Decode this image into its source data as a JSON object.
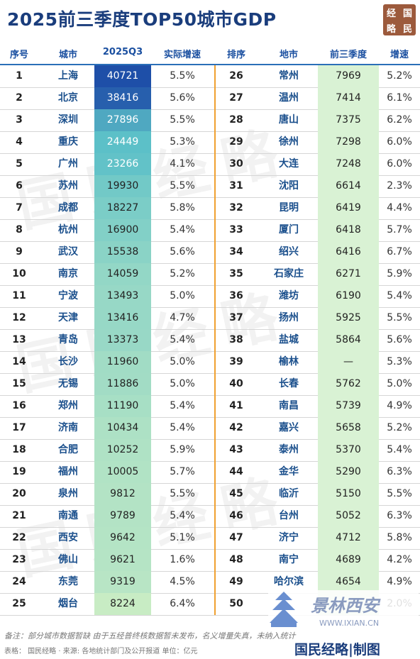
{
  "title": "2025前三季度TOP50城市GDP",
  "logo_chars": [
    "经",
    "国",
    "略",
    "民"
  ],
  "headers": [
    "序号",
    "城市",
    "2025Q3",
    "实际增速",
    "排序",
    "地市",
    "前三季度",
    "增速"
  ],
  "chart_data": {
    "type": "table",
    "title": "2025前三季度TOP50城市GDP",
    "columns": [
      "序号",
      "城市",
      "2025Q3",
      "实际增速"
    ],
    "rows": [
      [
        "1",
        "上海",
        "40721",
        "5.5%"
      ],
      [
        "2",
        "北京",
        "38416",
        "5.6%"
      ],
      [
        "3",
        "深圳",
        "27896",
        "5.5%"
      ],
      [
        "4",
        "重庆",
        "24449",
        "5.3%"
      ],
      [
        "5",
        "广州",
        "23266",
        "4.1%"
      ],
      [
        "6",
        "苏州",
        "19930",
        "5.5%"
      ],
      [
        "7",
        "成都",
        "18227",
        "5.8%"
      ],
      [
        "8",
        "杭州",
        "16900",
        "5.4%"
      ],
      [
        "9",
        "武汉",
        "15538",
        "5.6%"
      ],
      [
        "10",
        "南京",
        "14059",
        "5.2%"
      ],
      [
        "11",
        "宁波",
        "13493",
        "5.0%"
      ],
      [
        "12",
        "天津",
        "13416",
        "4.7%"
      ],
      [
        "13",
        "青岛",
        "13373",
        "5.4%"
      ],
      [
        "14",
        "长沙",
        "11960",
        "5.0%"
      ],
      [
        "15",
        "无锡",
        "11886",
        "5.0%"
      ],
      [
        "16",
        "郑州",
        "11190",
        "5.4%"
      ],
      [
        "17",
        "济南",
        "10434",
        "5.4%"
      ],
      [
        "18",
        "合肥",
        "10252",
        "5.9%"
      ],
      [
        "19",
        "福州",
        "10005",
        "5.7%"
      ],
      [
        "20",
        "泉州",
        "9812",
        "5.5%"
      ],
      [
        "21",
        "南通",
        "9789",
        "5.4%"
      ],
      [
        "22",
        "西安",
        "9642",
        "5.1%"
      ],
      [
        "23",
        "佛山",
        "9621",
        "1.6%"
      ],
      [
        "24",
        "东莞",
        "9319",
        "4.5%"
      ],
      [
        "25",
        "烟台",
        "8224",
        "6.4%"
      ]
    ],
    "rows_right": [
      [
        "26",
        "常州",
        "7969",
        "5.2%"
      ],
      [
        "27",
        "温州",
        "7414",
        "6.1%"
      ],
      [
        "28",
        "唐山",
        "7375",
        "6.2%"
      ],
      [
        "29",
        "徐州",
        "7298",
        "6.0%"
      ],
      [
        "30",
        "大连",
        "7248",
        "6.0%"
      ],
      [
        "31",
        "沈阳",
        "6614",
        "2.3%"
      ],
      [
        "32",
        "昆明",
        "6419",
        "4.4%"
      ],
      [
        "33",
        "厦门",
        "6418",
        "5.7%"
      ],
      [
        "34",
        "绍兴",
        "6416",
        "6.7%"
      ],
      [
        "35",
        "石家庄",
        "6271",
        "5.9%"
      ],
      [
        "36",
        "潍坊",
        "6190",
        "5.4%"
      ],
      [
        "37",
        "扬州",
        "5925",
        "5.5%"
      ],
      [
        "38",
        "盐城",
        "5864",
        "5.6%"
      ],
      [
        "39",
        "榆林",
        "—",
        "5.3%"
      ],
      [
        "40",
        "长春",
        "5762",
        "5.0%"
      ],
      [
        "41",
        "南昌",
        "5739",
        "4.9%"
      ],
      [
        "42",
        "嘉兴",
        "5658",
        "5.2%"
      ],
      [
        "43",
        "泰州",
        "5370",
        "5.4%"
      ],
      [
        "44",
        "金华",
        "5290",
        "6.3%"
      ],
      [
        "45",
        "临沂",
        "5150",
        "5.5%"
      ],
      [
        "46",
        "台州",
        "5052",
        "6.3%"
      ],
      [
        "47",
        "济宁",
        "4712",
        "5.8%"
      ],
      [
        "48",
        "南宁",
        "4689",
        "4.2%"
      ],
      [
        "49",
        "哈尔滨",
        "4654",
        "4.9%"
      ],
      [
        "50",
        "",
        "",
        "2.0%"
      ]
    ]
  },
  "colors": {
    "title": "#1a3d7c",
    "header_text": "#1a4fa0",
    "city_text": "#1a4f8c",
    "divider": "#f0a030",
    "logo_bg": "#9c5a3c",
    "heat_high": "#1e4fa8",
    "heat_mid": "#5cc0c8",
    "heat_low": "#c8ecc4",
    "right_value_bg": "#d9f2d4"
  },
  "watermark_text": "国民经略",
  "footer": {
    "note": "备注：部分城市数据暂缺 由于五经普终核数据暂未发布，名义增量失真，未纳入统计",
    "source": "表格：  国民经略 · 来源: 各地统计部门及公开报道 单位：亿元",
    "brand": "国民经略|制图",
    "stamp_text": "景林西安",
    "stamp_url": "WWW.IXIAN.CN"
  }
}
